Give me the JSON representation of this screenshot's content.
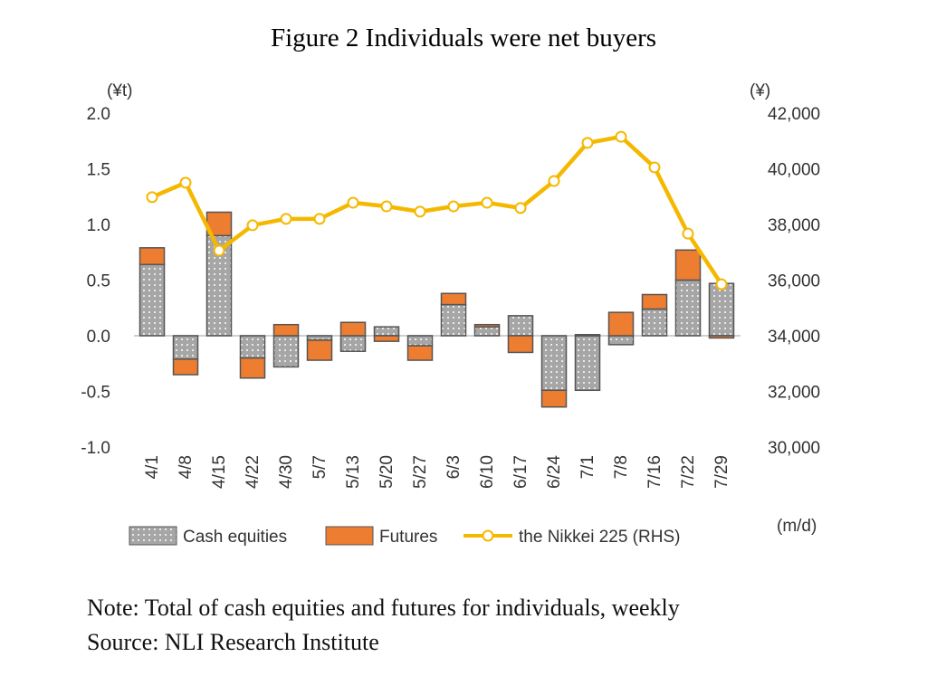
{
  "title": "Figure 2 Individuals were net buyers",
  "note": "Note: Total of cash equities and futures for individuals, weekly",
  "source": "Source: NLI Research Institute",
  "chart_data": {
    "type": "bar",
    "stacked": true,
    "title": "Figure 2 Individuals were net buyers",
    "left_unit": "(¥t)",
    "right_unit": "(¥)",
    "x_unit": "(m/d)",
    "categories": [
      "4/1",
      "4/8",
      "4/15",
      "4/22",
      "4/30",
      "5/7",
      "5/13",
      "5/20",
      "5/27",
      "6/3",
      "6/10",
      "6/17",
      "6/24",
      "7/1",
      "7/8",
      "7/16",
      "7/22",
      "7/29"
    ],
    "ylim": [
      -1.0,
      2.0
    ],
    "yticks": [
      "-1.0",
      "-0.5",
      "0.0",
      "0.5",
      "1.0",
      "1.5",
      "2.0"
    ],
    "y2lim": [
      30000,
      42000
    ],
    "y2ticks": [
      "30,000",
      "32,000",
      "34,000",
      "36,000",
      "38,000",
      "40,000",
      "42,000"
    ],
    "grid": false,
    "legend": "bottom",
    "series": [
      {
        "name": "Cash equities",
        "kind": "bar",
        "color": "#a6a6a6",
        "values": [
          0.64,
          -0.21,
          0.9,
          -0.2,
          -0.28,
          -0.04,
          -0.14,
          0.08,
          -0.09,
          0.28,
          0.08,
          0.18,
          -0.49,
          -0.49,
          -0.08,
          0.24,
          0.5,
          0.47
        ]
      },
      {
        "name": "Futures",
        "kind": "bar",
        "color": "#ed7d31",
        "values": [
          0.15,
          -0.14,
          0.21,
          -0.18,
          0.1,
          -0.18,
          0.12,
          -0.05,
          -0.13,
          0.1,
          0.02,
          -0.15,
          -0.15,
          0.01,
          0.21,
          0.13,
          0.27,
          -0.02
        ]
      },
      {
        "name": "the Nikkei 225 (RHS)",
        "kind": "line",
        "axis": "right",
        "color": "#f5b800",
        "values": [
          38980,
          39500,
          37060,
          37970,
          38200,
          38200,
          38780,
          38650,
          38460,
          38650,
          38780,
          38590,
          39560,
          40930,
          41150,
          40050,
          37670,
          35850
        ]
      }
    ]
  }
}
